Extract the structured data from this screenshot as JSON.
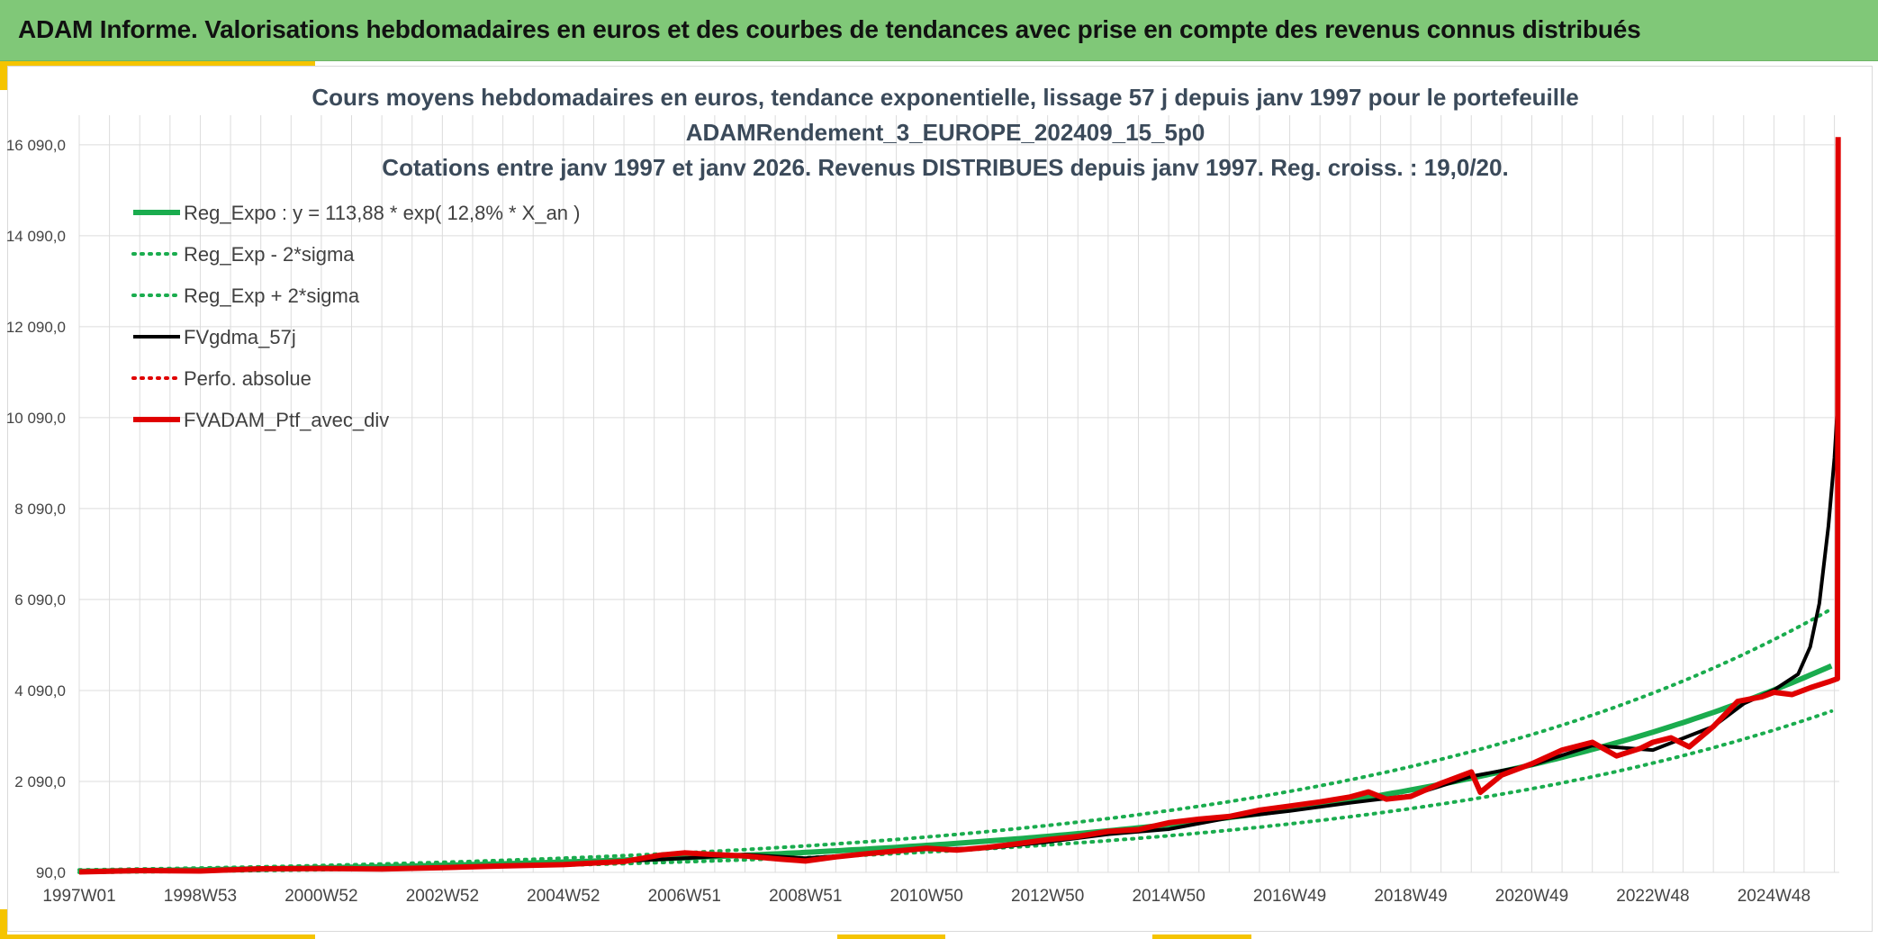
{
  "header": {
    "title": "ADAM Informe. Valorisations hebdomadaires en euros et des courbes de tendances avec prise en compte des revenus connus distribués"
  },
  "colors": {
    "header_bg": "#80c878",
    "accent": "#f5c400",
    "regression": "#1aac4e",
    "smoothed": "#000000",
    "portfolio": "#e00000",
    "grid": "#dcdcdc"
  },
  "chart_data": {
    "type": "line",
    "title": [
      "Cours moyens hebdomadaires en euros, tendance exponentielle, lissage 57 j depuis janv 1997 pour le portefeuille",
      "ADAMRendement_3_EUROPE_202409_15_5p0",
      "Cotations entre janv 1997 et janv 2026. Revenus DISTRIBUES depuis janv 1997. Reg. croiss. : 19,0/20."
    ],
    "ylim": [
      90,
      16740
    ],
    "y_ticks": [
      90,
      2090,
      4090,
      6090,
      8090,
      10090,
      12090,
      14090,
      16090
    ],
    "y_tick_labels": [
      "90,0",
      "2 090,0",
      "4 090,0",
      "6 090,0",
      "8 090,0",
      "10 090,0",
      "12 090,0",
      "14 090,0",
      "16 090,0"
    ],
    "xlim": [
      1997.0,
      2026.08
    ],
    "x_tick_labels": [
      "1997W01",
      "1998W53",
      "2000W52",
      "2002W52",
      "2004W52",
      "2006W51",
      "2008W51",
      "2010W50",
      "2012W50",
      "2014W50",
      "2016W49",
      "2018W49",
      "2020W49",
      "2022W48",
      "2024W48"
    ],
    "x_tick_positions": [
      1997.0,
      1999.0,
      2001.0,
      2003.0,
      2005.0,
      2007.0,
      2009.0,
      2011.0,
      2013.0,
      2015.0,
      2017.0,
      2019.0,
      2021.0,
      2023.0,
      2025.0
    ],
    "grid": true,
    "legend_position": "top-left",
    "regression": {
      "a": 113.88,
      "rate": 0.128,
      "lower_factor": 0.785,
      "upper_factor": 1.27
    },
    "series": [
      {
        "name": "Reg_Expo : y = 113,88 * exp( 12,8% *  X_an )",
        "key": "reg",
        "style": "solid-thick",
        "color": "#1aac4e",
        "values": []
      },
      {
        "name": "Reg_Exp - 2*sigma",
        "key": "lower",
        "style": "dotted",
        "color": "#1aac4e",
        "values": []
      },
      {
        "name": "Reg_Exp + 2*sigma",
        "key": "upper",
        "style": "dotted",
        "color": "#1aac4e",
        "values": []
      },
      {
        "name": "FVgdma_57j",
        "key": "smooth",
        "style": "solid",
        "color": "#000000",
        "values": [
          [
            1997.0,
            100
          ],
          [
            1999.0,
            130
          ],
          [
            2001.0,
            165
          ],
          [
            2003.0,
            200
          ],
          [
            2005.0,
            270
          ],
          [
            2007.0,
            400
          ],
          [
            2008.0,
            480
          ],
          [
            2009.0,
            400
          ],
          [
            2010.0,
            490
          ],
          [
            2011.0,
            600
          ],
          [
            2012.0,
            620
          ],
          [
            2013.0,
            760
          ],
          [
            2014.0,
            930
          ],
          [
            2015.0,
            1040
          ],
          [
            2016.0,
            1290
          ],
          [
            2017.0,
            1440
          ],
          [
            2018.0,
            1620
          ],
          [
            2019.0,
            1780
          ],
          [
            2020.0,
            2200
          ],
          [
            2021.0,
            2450
          ],
          [
            2022.0,
            2880
          ],
          [
            2023.0,
            2780
          ],
          [
            2024.0,
            3300
          ],
          [
            2024.5,
            3800
          ],
          [
            2025.0,
            4100
          ],
          [
            2025.4,
            4450
          ],
          [
            2025.6,
            5050
          ],
          [
            2025.75,
            6000
          ],
          [
            2025.9,
            7700
          ],
          [
            2026.0,
            9200
          ],
          [
            2026.05,
            10300
          ]
        ]
      },
      {
        "name": "Perfo. absolue",
        "key": "perfo",
        "style": "dotted",
        "color": "#e00000",
        "values": []
      },
      {
        "name": "FVADAM_Ptf_avec_div",
        "key": "ptf",
        "style": "solid-thick",
        "color": "#e00000",
        "values": [
          [
            1997.0,
            100
          ],
          [
            1998.0,
            130
          ],
          [
            1999.0,
            120
          ],
          [
            2000.0,
            170
          ],
          [
            2001.0,
            175
          ],
          [
            2002.0,
            165
          ],
          [
            2003.0,
            195
          ],
          [
            2004.0,
            230
          ],
          [
            2005.0,
            260
          ],
          [
            2006.0,
            330
          ],
          [
            2006.6,
            470
          ],
          [
            2007.0,
            520
          ],
          [
            2007.5,
            480
          ],
          [
            2008.0,
            450
          ],
          [
            2008.6,
            380
          ],
          [
            2009.0,
            340
          ],
          [
            2009.5,
            430
          ],
          [
            2010.0,
            500
          ],
          [
            2010.5,
            560
          ],
          [
            2011.0,
            620
          ],
          [
            2011.5,
            580
          ],
          [
            2012.0,
            640
          ],
          [
            2012.5,
            720
          ],
          [
            2013.0,
            810
          ],
          [
            2013.5,
            880
          ],
          [
            2014.0,
            990
          ],
          [
            2014.5,
            1030
          ],
          [
            2015.0,
            1180
          ],
          [
            2015.5,
            1260
          ],
          [
            2016.0,
            1320
          ],
          [
            2016.5,
            1460
          ],
          [
            2017.0,
            1550
          ],
          [
            2017.5,
            1640
          ],
          [
            2018.0,
            1750
          ],
          [
            2018.3,
            1860
          ],
          [
            2018.6,
            1700
          ],
          [
            2019.0,
            1760
          ],
          [
            2019.5,
            2050
          ],
          [
            2020.0,
            2300
          ],
          [
            2020.15,
            1850
          ],
          [
            2020.5,
            2230
          ],
          [
            2021.0,
            2480
          ],
          [
            2021.5,
            2780
          ],
          [
            2022.0,
            2950
          ],
          [
            2022.4,
            2650
          ],
          [
            2022.8,
            2820
          ],
          [
            2023.0,
            2950
          ],
          [
            2023.3,
            3050
          ],
          [
            2023.6,
            2850
          ],
          [
            2024.0,
            3300
          ],
          [
            2024.4,
            3850
          ],
          [
            2024.8,
            3950
          ],
          [
            2025.0,
            4050
          ],
          [
            2025.3,
            4000
          ],
          [
            2025.6,
            4150
          ],
          [
            2025.9,
            4280
          ],
          [
            2026.05,
            4350
          ],
          [
            2026.06,
            16260
          ]
        ]
      }
    ]
  }
}
